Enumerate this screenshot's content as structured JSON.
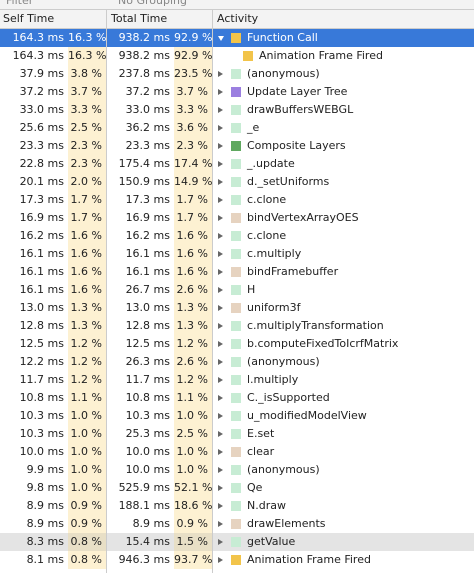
{
  "toolbar": {
    "filter": "Filter",
    "grouping": "No Grouping"
  },
  "header": {
    "self": "Self Time",
    "total": "Total Time",
    "activity": "Activity"
  },
  "rows": [
    {
      "self": "164.3 ms",
      "self_pct": "16.3 %",
      "total": "938.2 ms",
      "total_pct": "92.9 %",
      "activity": "Function Call",
      "icon": "#f2c44a"
    },
    {
      "self": "164.3 ms",
      "self_pct": "16.3 %",
      "total": "938.2 ms",
      "total_pct": "92.9 %",
      "activity": "Animation Frame Fired",
      "icon": "#f2c44a"
    },
    {
      "self": "37.9 ms",
      "self_pct": "3.8 %",
      "total": "237.8 ms",
      "total_pct": "23.5 %",
      "activity": "(anonymous)",
      "icon": "#c7ecd4"
    },
    {
      "self": "37.2 ms",
      "self_pct": "3.7 %",
      "total": "37.2 ms",
      "total_pct": "3.7 %",
      "activity": "Update Layer Tree",
      "icon": "#9b7fe0"
    },
    {
      "self": "33.0 ms",
      "self_pct": "3.3 %",
      "total": "33.0 ms",
      "total_pct": "3.3 %",
      "activity": "drawBuffersWEBGL",
      "icon": "#c7ecd4"
    },
    {
      "self": "25.6 ms",
      "self_pct": "2.5 %",
      "total": "36.2 ms",
      "total_pct": "3.6 %",
      "activity": "_e",
      "icon": "#c7ecd4"
    },
    {
      "self": "23.3 ms",
      "self_pct": "2.3 %",
      "total": "23.3 ms",
      "total_pct": "2.3 %",
      "activity": "Composite Layers",
      "icon": "#5fa85f"
    },
    {
      "self": "22.8 ms",
      "self_pct": "2.3 %",
      "total": "175.4 ms",
      "total_pct": "17.4 %",
      "activity": "_.update",
      "icon": "#c7ecd4"
    },
    {
      "self": "20.1 ms",
      "self_pct": "2.0 %",
      "total": "150.9 ms",
      "total_pct": "14.9 %",
      "activity": "d._setUniforms",
      "icon": "#c7ecd4"
    },
    {
      "self": "17.3 ms",
      "self_pct": "1.7 %",
      "total": "17.3 ms",
      "total_pct": "1.7 %",
      "activity": "c.clone",
      "icon": "#c7ecd4"
    },
    {
      "self": "16.9 ms",
      "self_pct": "1.7 %",
      "total": "16.9 ms",
      "total_pct": "1.7 %",
      "activity": "bindVertexArrayOES",
      "icon": "#e6d3c0"
    },
    {
      "self": "16.2 ms",
      "self_pct": "1.6 %",
      "total": "16.2 ms",
      "total_pct": "1.6 %",
      "activity": "c.clone",
      "icon": "#c7ecd4"
    },
    {
      "self": "16.1 ms",
      "self_pct": "1.6 %",
      "total": "16.1 ms",
      "total_pct": "1.6 %",
      "activity": "c.multiply",
      "icon": "#c7ecd4"
    },
    {
      "self": "16.1 ms",
      "self_pct": "1.6 %",
      "total": "16.1 ms",
      "total_pct": "1.6 %",
      "activity": "bindFramebuffer",
      "icon": "#e6d3c0"
    },
    {
      "self": "16.1 ms",
      "self_pct": "1.6 %",
      "total": "26.7 ms",
      "total_pct": "2.6 %",
      "activity": "H",
      "icon": "#c7ecd4"
    },
    {
      "self": "13.0 ms",
      "self_pct": "1.3 %",
      "total": "13.0 ms",
      "total_pct": "1.3 %",
      "activity": "uniform3f",
      "icon": "#e6d3c0"
    },
    {
      "self": "12.8 ms",
      "self_pct": "1.3 %",
      "total": "12.8 ms",
      "total_pct": "1.3 %",
      "activity": "c.multiplyTransformation",
      "icon": "#c7ecd4"
    },
    {
      "self": "12.5 ms",
      "self_pct": "1.2 %",
      "total": "12.5 ms",
      "total_pct": "1.2 %",
      "activity": "b.computeFixedToIcrfMatrix",
      "icon": "#c7ecd4"
    },
    {
      "self": "12.2 ms",
      "self_pct": "1.2 %",
      "total": "26.3 ms",
      "total_pct": "2.6 %",
      "activity": "(anonymous)",
      "icon": "#c7ecd4"
    },
    {
      "self": "11.7 ms",
      "self_pct": "1.2 %",
      "total": "11.7 ms",
      "total_pct": "1.2 %",
      "activity": "l.multiply",
      "icon": "#c7ecd4"
    },
    {
      "self": "10.8 ms",
      "self_pct": "1.1 %",
      "total": "10.8 ms",
      "total_pct": "1.1 %",
      "activity": "C._isSupported",
      "icon": "#c7ecd4"
    },
    {
      "self": "10.3 ms",
      "self_pct": "1.0 %",
      "total": "10.3 ms",
      "total_pct": "1.0 %",
      "activity": "u_modifiedModelView",
      "icon": "#c7ecd4"
    },
    {
      "self": "10.3 ms",
      "self_pct": "1.0 %",
      "total": "25.3 ms",
      "total_pct": "2.5 %",
      "activity": "E.set",
      "icon": "#c7ecd4"
    },
    {
      "self": "10.0 ms",
      "self_pct": "1.0 %",
      "total": "10.0 ms",
      "total_pct": "1.0 %",
      "activity": "clear",
      "icon": "#e6d3c0"
    },
    {
      "self": "9.9 ms",
      "self_pct": "1.0 %",
      "total": "10.0 ms",
      "total_pct": "1.0 %",
      "activity": "(anonymous)",
      "icon": "#c7ecd4"
    },
    {
      "self": "9.8 ms",
      "self_pct": "1.0 %",
      "total": "525.9 ms",
      "total_pct": "52.1 %",
      "activity": "Qe",
      "icon": "#c7ecd4"
    },
    {
      "self": "8.9 ms",
      "self_pct": "0.9 %",
      "total": "188.1 ms",
      "total_pct": "18.6 %",
      "activity": "N.draw",
      "icon": "#c7ecd4"
    },
    {
      "self": "8.9 ms",
      "self_pct": "0.9 %",
      "total": "8.9 ms",
      "total_pct": "0.9 %",
      "activity": "drawElements",
      "icon": "#e6d3c0"
    },
    {
      "self": "8.3 ms",
      "self_pct": "0.8 %",
      "total": "15.4 ms",
      "total_pct": "1.5 %",
      "activity": "getValue",
      "icon": "#c7ecd4"
    },
    {
      "self": "8.1 ms",
      "self_pct": "0.8 %",
      "total": "946.3 ms",
      "total_pct": "93.7 %",
      "activity": "Animation Frame Fired",
      "icon": "#f2c44a"
    }
  ]
}
